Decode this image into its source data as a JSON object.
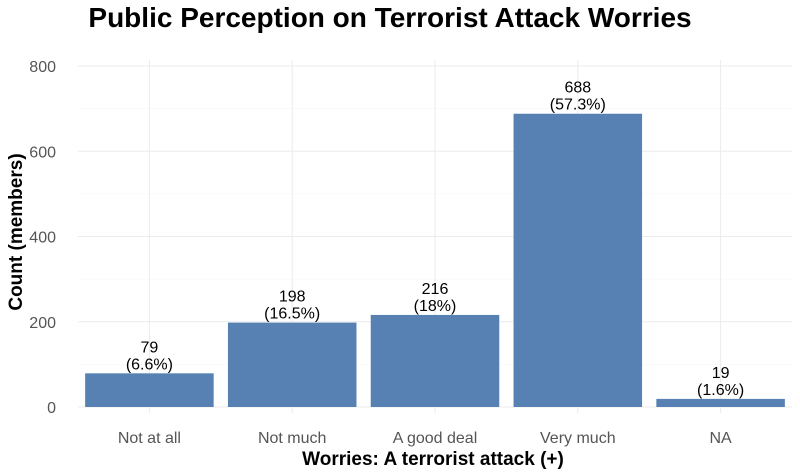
{
  "chart_data": {
    "type": "bar",
    "title": "Public Perception on Terrorist Attack Worries",
    "xlabel": "Worries: A terrorist attack (+)",
    "ylabel": "Count (members)",
    "categories": [
      "Not at all",
      "Not much",
      "A good deal",
      "Very much",
      "NA"
    ],
    "values": [
      79,
      198,
      216,
      688,
      19
    ],
    "value_labels": [
      "79",
      "198",
      "216",
      "688",
      "19"
    ],
    "percent_labels": [
      "(6.6%)",
      "(16.5%)",
      "(18%)",
      "(57.3%)",
      "(1.6%)"
    ],
    "ylim": [
      0,
      800
    ],
    "yticks": [
      0,
      200,
      400,
      600,
      800
    ],
    "ytick_labels": [
      "0",
      "200",
      "400",
      "600",
      "800"
    ],
    "bar_color": "#5681b2",
    "grid": true,
    "legend": "none"
  }
}
